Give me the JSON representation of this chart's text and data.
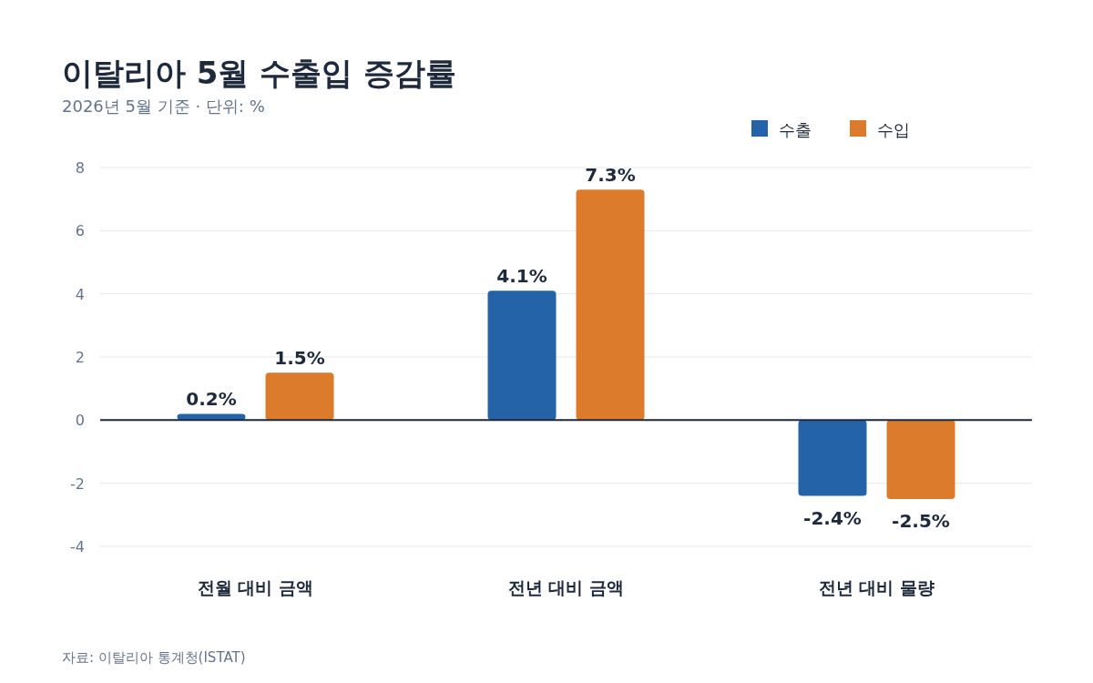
{
  "chart_data": {
    "type": "bar",
    "title": "이탈리아 5월 수출입 증감률",
    "subtitle": "2026년 5월 기준 · 단위: %",
    "categories": [
      "전월 대비 금액",
      "전년 대비 금액",
      "전년 대비 물량"
    ],
    "series": [
      {
        "name": "수출",
        "color": "#2563a8",
        "values": [
          0.2,
          4.1,
          -2.4
        ],
        "value_labels": [
          "0.2%",
          "4.1%",
          "-2.4%"
        ]
      },
      {
        "name": "수입",
        "color": "#dc7b2c",
        "values": [
          1.5,
          7.3,
          -2.5
        ],
        "value_labels": [
          "1.5%",
          "7.3%",
          "-2.5%"
        ]
      }
    ],
    "ylim": [
      -4,
      8
    ],
    "yticks": [
      -4,
      -2,
      0,
      2,
      4,
      6,
      8
    ],
    "grid": "y",
    "legend": "top right",
    "annotations": [
      "자료: 이탈리아 통계청(ISTAT)"
    ]
  }
}
